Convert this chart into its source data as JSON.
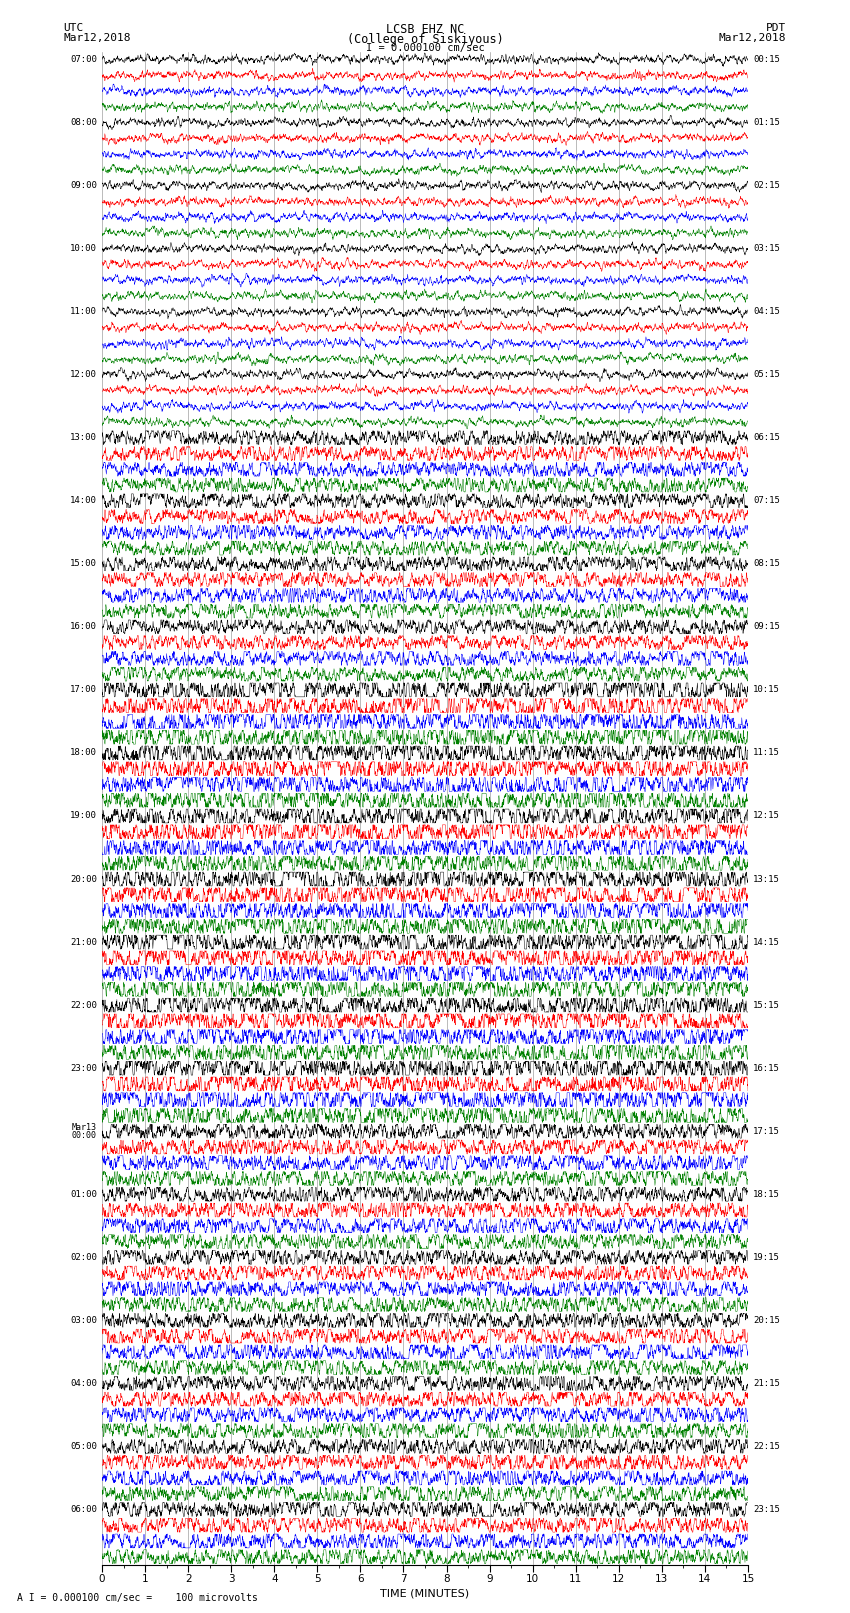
{
  "title_line1": "LCSB EHZ NC",
  "title_line2": "(College of Siskiyous)",
  "scale_label": "I = 0.000100 cm/sec",
  "footer_label": "A I = 0.000100 cm/sec =    100 microvolts",
  "utc_label": "UTC",
  "utc_date": "Mar12,2018",
  "pdt_label": "PDT",
  "pdt_date": "Mar12,2018",
  "xlabel": "TIME (MINUTES)",
  "bg_color": "#ffffff",
  "trace_colors": [
    "black",
    "red",
    "blue",
    "green"
  ],
  "minutes": 15,
  "samples_per_minute": 200,
  "left_times": [
    "07:00",
    "",
    "",
    "",
    "08:00",
    "",
    "",
    "",
    "09:00",
    "",
    "",
    "",
    "10:00",
    "",
    "",
    "",
    "11:00",
    "",
    "",
    "",
    "12:00",
    "",
    "",
    "",
    "13:00",
    "",
    "",
    "",
    "14:00",
    "",
    "",
    "",
    "15:00",
    "",
    "",
    "",
    "16:00",
    "",
    "",
    "",
    "17:00",
    "",
    "",
    "",
    "18:00",
    "",
    "",
    "",
    "19:00",
    "",
    "",
    "",
    "20:00",
    "",
    "",
    "",
    "21:00",
    "",
    "",
    "",
    "22:00",
    "",
    "",
    "",
    "23:00",
    "",
    "",
    "",
    "Mar13\n00:00",
    "",
    "",
    "",
    "01:00",
    "",
    "",
    "",
    "02:00",
    "",
    "",
    "",
    "03:00",
    "",
    "",
    "",
    "04:00",
    "",
    "",
    "",
    "05:00",
    "",
    "",
    "",
    "06:00",
    "",
    "",
    ""
  ],
  "right_times": [
    "00:15",
    "",
    "",
    "",
    "01:15",
    "",
    "",
    "",
    "02:15",
    "",
    "",
    "",
    "03:15",
    "",
    "",
    "",
    "04:15",
    "",
    "",
    "",
    "05:15",
    "",
    "",
    "",
    "06:15",
    "",
    "",
    "",
    "07:15",
    "",
    "",
    "",
    "08:15",
    "",
    "",
    "",
    "09:15",
    "",
    "",
    "",
    "10:15",
    "",
    "",
    "",
    "11:15",
    "",
    "",
    "",
    "12:15",
    "",
    "",
    "",
    "13:15",
    "",
    "",
    "",
    "14:15",
    "",
    "",
    "",
    "15:15",
    "",
    "",
    "",
    "16:15",
    "",
    "",
    "",
    "17:15",
    "",
    "",
    "",
    "18:15",
    "",
    "",
    "",
    "19:15",
    "",
    "",
    "",
    "20:15",
    "",
    "",
    "",
    "21:15",
    "",
    "",
    "",
    "22:15",
    "",
    "",
    "",
    "23:15",
    "",
    "",
    ""
  ],
  "num_hours": 24,
  "traces_per_hour": 4,
  "random_seed": 42,
  "grid_color": "#aaaaaa",
  "vline_color": "#888888"
}
